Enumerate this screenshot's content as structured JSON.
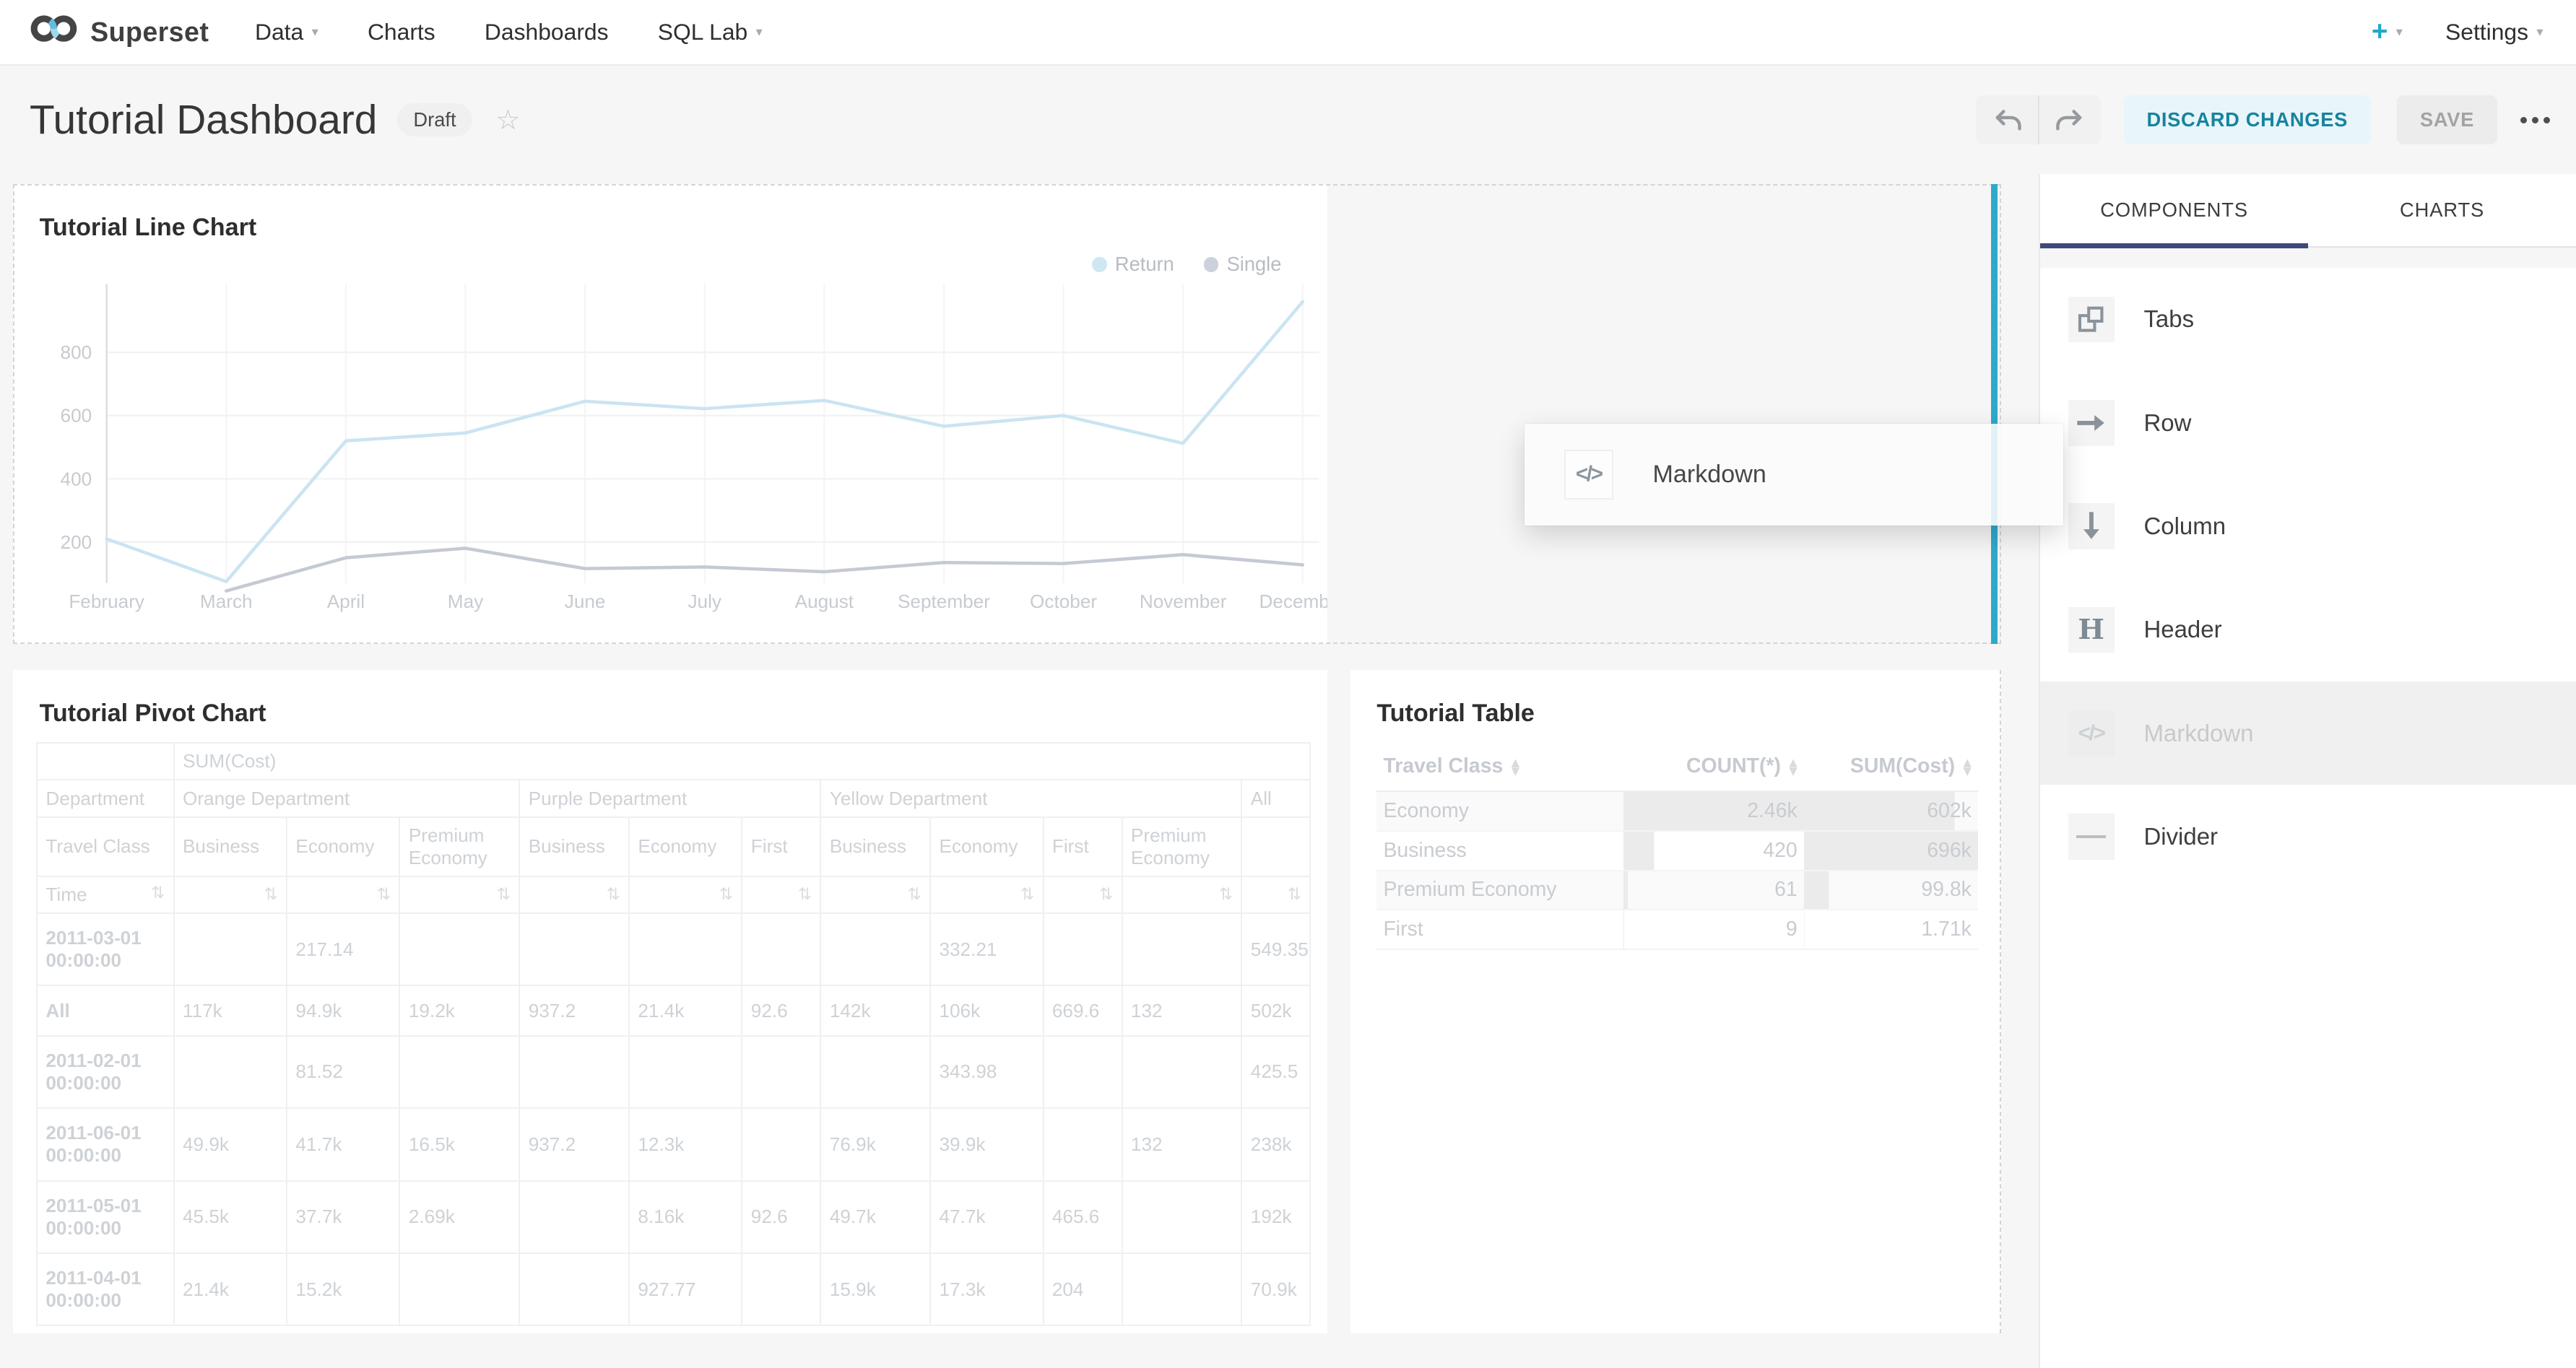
{
  "nav": {
    "brand": "Superset",
    "items": [
      {
        "label": "Data",
        "has_caret": true
      },
      {
        "label": "Charts",
        "has_caret": false
      },
      {
        "label": "Dashboards",
        "has_caret": false
      },
      {
        "label": "SQL Lab",
        "has_caret": true
      }
    ],
    "plus_label": "+",
    "settings_label": "Settings"
  },
  "header": {
    "title": "Tutorial Dashboard",
    "status_badge": "Draft",
    "star_icon": "star-outline",
    "buttons": {
      "undo": "undo-arrow",
      "redo": "redo-arrow",
      "discard": "DISCARD CHANGES",
      "save": "SAVE",
      "more": "ellipsis"
    }
  },
  "sidebar": {
    "tabs": [
      {
        "label": "COMPONENTS",
        "active": true
      },
      {
        "label": "CHARTS",
        "active": false
      }
    ],
    "items": [
      {
        "label": "Tabs",
        "icon": "tabs-icon",
        "dragging": false
      },
      {
        "label": "Row",
        "icon": "arrow-right-icon",
        "dragging": false
      },
      {
        "label": "Column",
        "icon": "arrow-down-icon",
        "dragging": false
      },
      {
        "label": "Header",
        "icon": "header-icon",
        "dragging": false
      },
      {
        "label": "Markdown",
        "icon": "code-icon",
        "dragging": true
      },
      {
        "label": "Divider",
        "icon": "divider-icon",
        "dragging": false
      }
    ]
  },
  "drag_preview": {
    "label": "Markdown",
    "icon": "code-icon"
  },
  "colors": {
    "accent": "#20a7c9",
    "drop_indicator": "#2fa9cb",
    "tab_indicator": "#3f4a78",
    "discard_text": "#17839f",
    "discard_bg": "#e8f5f9",
    "table_bar": "#ebebeb",
    "row_stripe": "#fafafa",
    "return_line": "#cbe4f2",
    "single_line": "#c5c9d4"
  },
  "chart_data": [
    {
      "type": "line",
      "title": "Tutorial Line Chart",
      "x": [
        "February",
        "March",
        "April",
        "May",
        "June",
        "July",
        "August",
        "September",
        "October",
        "November",
        "December"
      ],
      "series": [
        {
          "name": "Return",
          "color": "#cbe4f2",
          "dot_color": "#cfe6f3",
          "values": [
            210,
            75,
            520,
            545,
            645,
            622,
            648,
            566,
            600,
            512,
            960
          ]
        },
        {
          "name": "Single",
          "color": "#c5c9d4",
          "dot_color": "#cdd1db",
          "values": [
            null,
            45,
            150,
            180,
            116,
            121,
            106,
            135,
            132,
            160,
            128
          ]
        }
      ],
      "ylim": [
        0,
        1000
      ],
      "yticks": [
        200,
        400,
        600,
        800
      ],
      "grid": true,
      "legend_position": "top-right"
    },
    {
      "type": "table",
      "title": "Tutorial Pivot Chart",
      "metric_header": "SUM(Cost)",
      "department_header": "Department",
      "department_groups": [
        {
          "label": "Orange Department",
          "span": 3
        },
        {
          "label": "Purple Department",
          "span": 3
        },
        {
          "label": "Yellow Department",
          "span": 4
        },
        {
          "label": "All",
          "span": 1
        }
      ],
      "travel_class_header": "Travel Class",
      "travel_class_cols": [
        "Business",
        "Economy",
        "Premium Economy",
        "Business",
        "Economy",
        "First",
        "Business",
        "Economy",
        "First",
        "Premium Economy",
        ""
      ],
      "row_header": "Time",
      "sort_icon": "sort-arrows",
      "rows": [
        {
          "time": "2011-03-01 00:00:00",
          "values": [
            "",
            "217.14",
            "",
            "",
            "",
            "",
            "",
            "332.21",
            "",
            "",
            "549.35"
          ]
        },
        {
          "time": "All",
          "values": [
            "117k",
            "94.9k",
            "19.2k",
            "937.2",
            "21.4k",
            "92.6",
            "142k",
            "106k",
            "669.6",
            "132",
            "502k"
          ]
        },
        {
          "time": "2011-02-01 00:00:00",
          "values": [
            "",
            "81.52",
            "",
            "",
            "",
            "",
            "",
            "343.98",
            "",
            "",
            "425.5"
          ]
        },
        {
          "time": "2011-06-01 00:00:00",
          "values": [
            "49.9k",
            "41.7k",
            "16.5k",
            "937.2",
            "12.3k",
            "",
            "76.9k",
            "39.9k",
            "",
            "132",
            "238k"
          ]
        },
        {
          "time": "2011-05-01 00:00:00",
          "values": [
            "45.5k",
            "37.7k",
            "2.69k",
            "",
            "8.16k",
            "92.6",
            "49.7k",
            "47.7k",
            "465.6",
            "",
            "192k"
          ]
        },
        {
          "time": "2011-04-01 00:00:00",
          "values": [
            "21.4k",
            "15.2k",
            "",
            "",
            "927.77",
            "",
            "15.9k",
            "17.3k",
            "204",
            "",
            "70.9k"
          ]
        }
      ]
    },
    {
      "type": "table",
      "title": "Tutorial Table",
      "columns": [
        "Travel Class",
        "COUNT(*)",
        "SUM(Cost)"
      ],
      "rows": [
        {
          "travel_class": "Economy",
          "count_display": "2.46k",
          "count": 2460,
          "sum_display": "602k",
          "sum": 602000
        },
        {
          "travel_class": "Business",
          "count_display": "420",
          "count": 420,
          "sum_display": "696k",
          "sum": 696000
        },
        {
          "travel_class": "Premium Economy",
          "count_display": "61",
          "count": 61,
          "sum_display": "99.8k",
          "sum": 99800
        },
        {
          "travel_class": "First",
          "count_display": "9",
          "count": 9,
          "sum_display": "1.71k",
          "sum": 1710
        }
      ]
    }
  ]
}
